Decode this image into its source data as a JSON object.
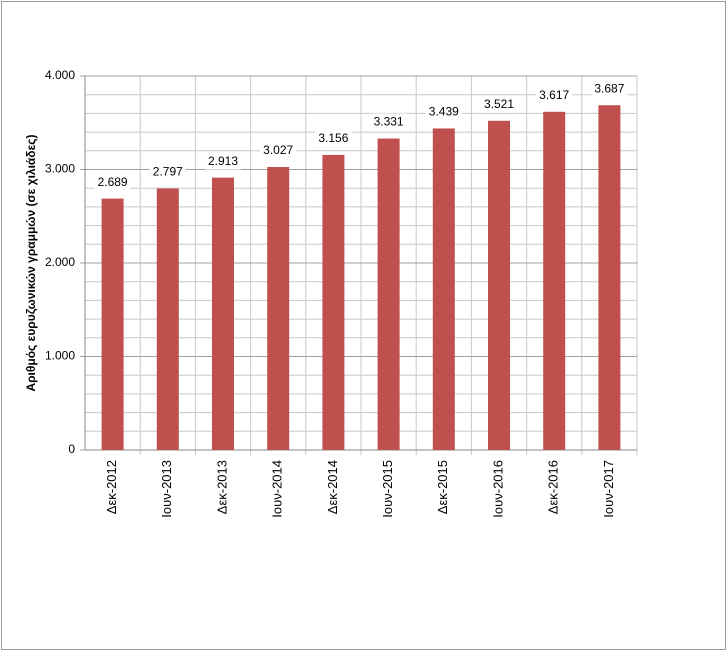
{
  "chart_data": {
    "type": "bar",
    "y_label": "Αριθμός ευρυζωνικών γραμμών (σε χιλιάδες)",
    "categories": [
      "Δεκ-2012",
      "Ιουν-2013",
      "Δεκ-2013",
      "Ιουν-2014",
      "Δεκ-2014",
      "Ιουν-2015",
      "Δεκ-2015",
      "Ιουν-2016",
      "Δεκ-2016",
      "Ιουν-2017"
    ],
    "values": [
      2689,
      2797,
      2913,
      3027,
      3156,
      3331,
      3439,
      3521,
      3617,
      3687
    ],
    "value_labels": [
      "2.689",
      "2.797",
      "2.913",
      "3.027",
      "3.156",
      "3.331",
      "3.439",
      "3.521",
      "3.617",
      "3.687"
    ],
    "color": "#c0504d",
    "ylim": [
      0,
      4000
    ],
    "yticks": [
      0,
      {
        "value": 1000,
        "label": "1.000"
      },
      {
        "value": 2000,
        "label": "2.000"
      },
      {
        "value": 3000,
        "label": "3.000"
      },
      {
        "value": 4000,
        "label": "4.000"
      }
    ],
    "minor_yticks": [
      200,
      400,
      600,
      800,
      1200,
      1400,
      1600,
      1800,
      2200,
      2400,
      2600,
      2800,
      3200,
      3400,
      3600,
      3800
    ],
    "grid": true
  }
}
